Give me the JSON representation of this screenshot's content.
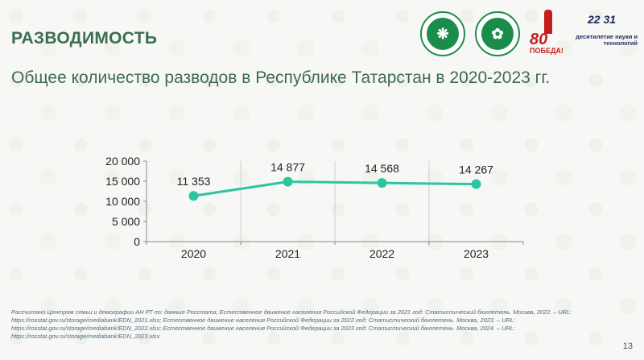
{
  "slide": {
    "title": "РАЗВОДИМОСТЬ",
    "subtitle": "Общее количество разводов в Республике Татарстан в 2020-2023 гг.",
    "page_number": "13",
    "footnote": "Рассчитано Центром семьи и демографии АН РТ по: данные Росстата; Естественное движение населения Российской Федерации за 2021 год: Статистический бюллетень. Москва, 2022. – URL: https://rosstat.gov.ru/storage/mediabank/EDN_2021.xlsx; Естественное движение населения Российской Федерации за 2022 год: Статистический бюллетень. Москва, 2023. – URL: https://rosstat.gov.ru/storage/mediabank/EDN_2022.xlsx; Естественное движение населения Российской Федерации за 2023 год: Статистический бюллетень. Москва, 2024. – URL: https://rosstat.gov.ru/storage/mediabank/EDN_2023.xlsx"
  },
  "logos": {
    "victory_number": "80",
    "victory_word": "ПОБЕДА!",
    "decade_numbers": "22 31",
    "decade_text": "десятилетие науки и технологий"
  },
  "colors": {
    "title": "#3b6e4e",
    "line": "#2ec4a0",
    "axis": "#888888",
    "grid": "#cfcfcf"
  },
  "chart_data": {
    "type": "line",
    "categories": [
      "2020",
      "2021",
      "2022",
      "2023"
    ],
    "values": [
      11353,
      14877,
      14568,
      14267
    ],
    "data_labels": [
      "11 353",
      "14 877",
      "14 568",
      "14 267"
    ],
    "y_ticks": [
      0,
      5000,
      10000,
      15000,
      20000
    ],
    "y_tick_labels": [
      "0",
      "5 000",
      "10 000",
      "15 000",
      "20 000"
    ],
    "ylim": [
      0,
      20000
    ],
    "grid": "vertical"
  }
}
